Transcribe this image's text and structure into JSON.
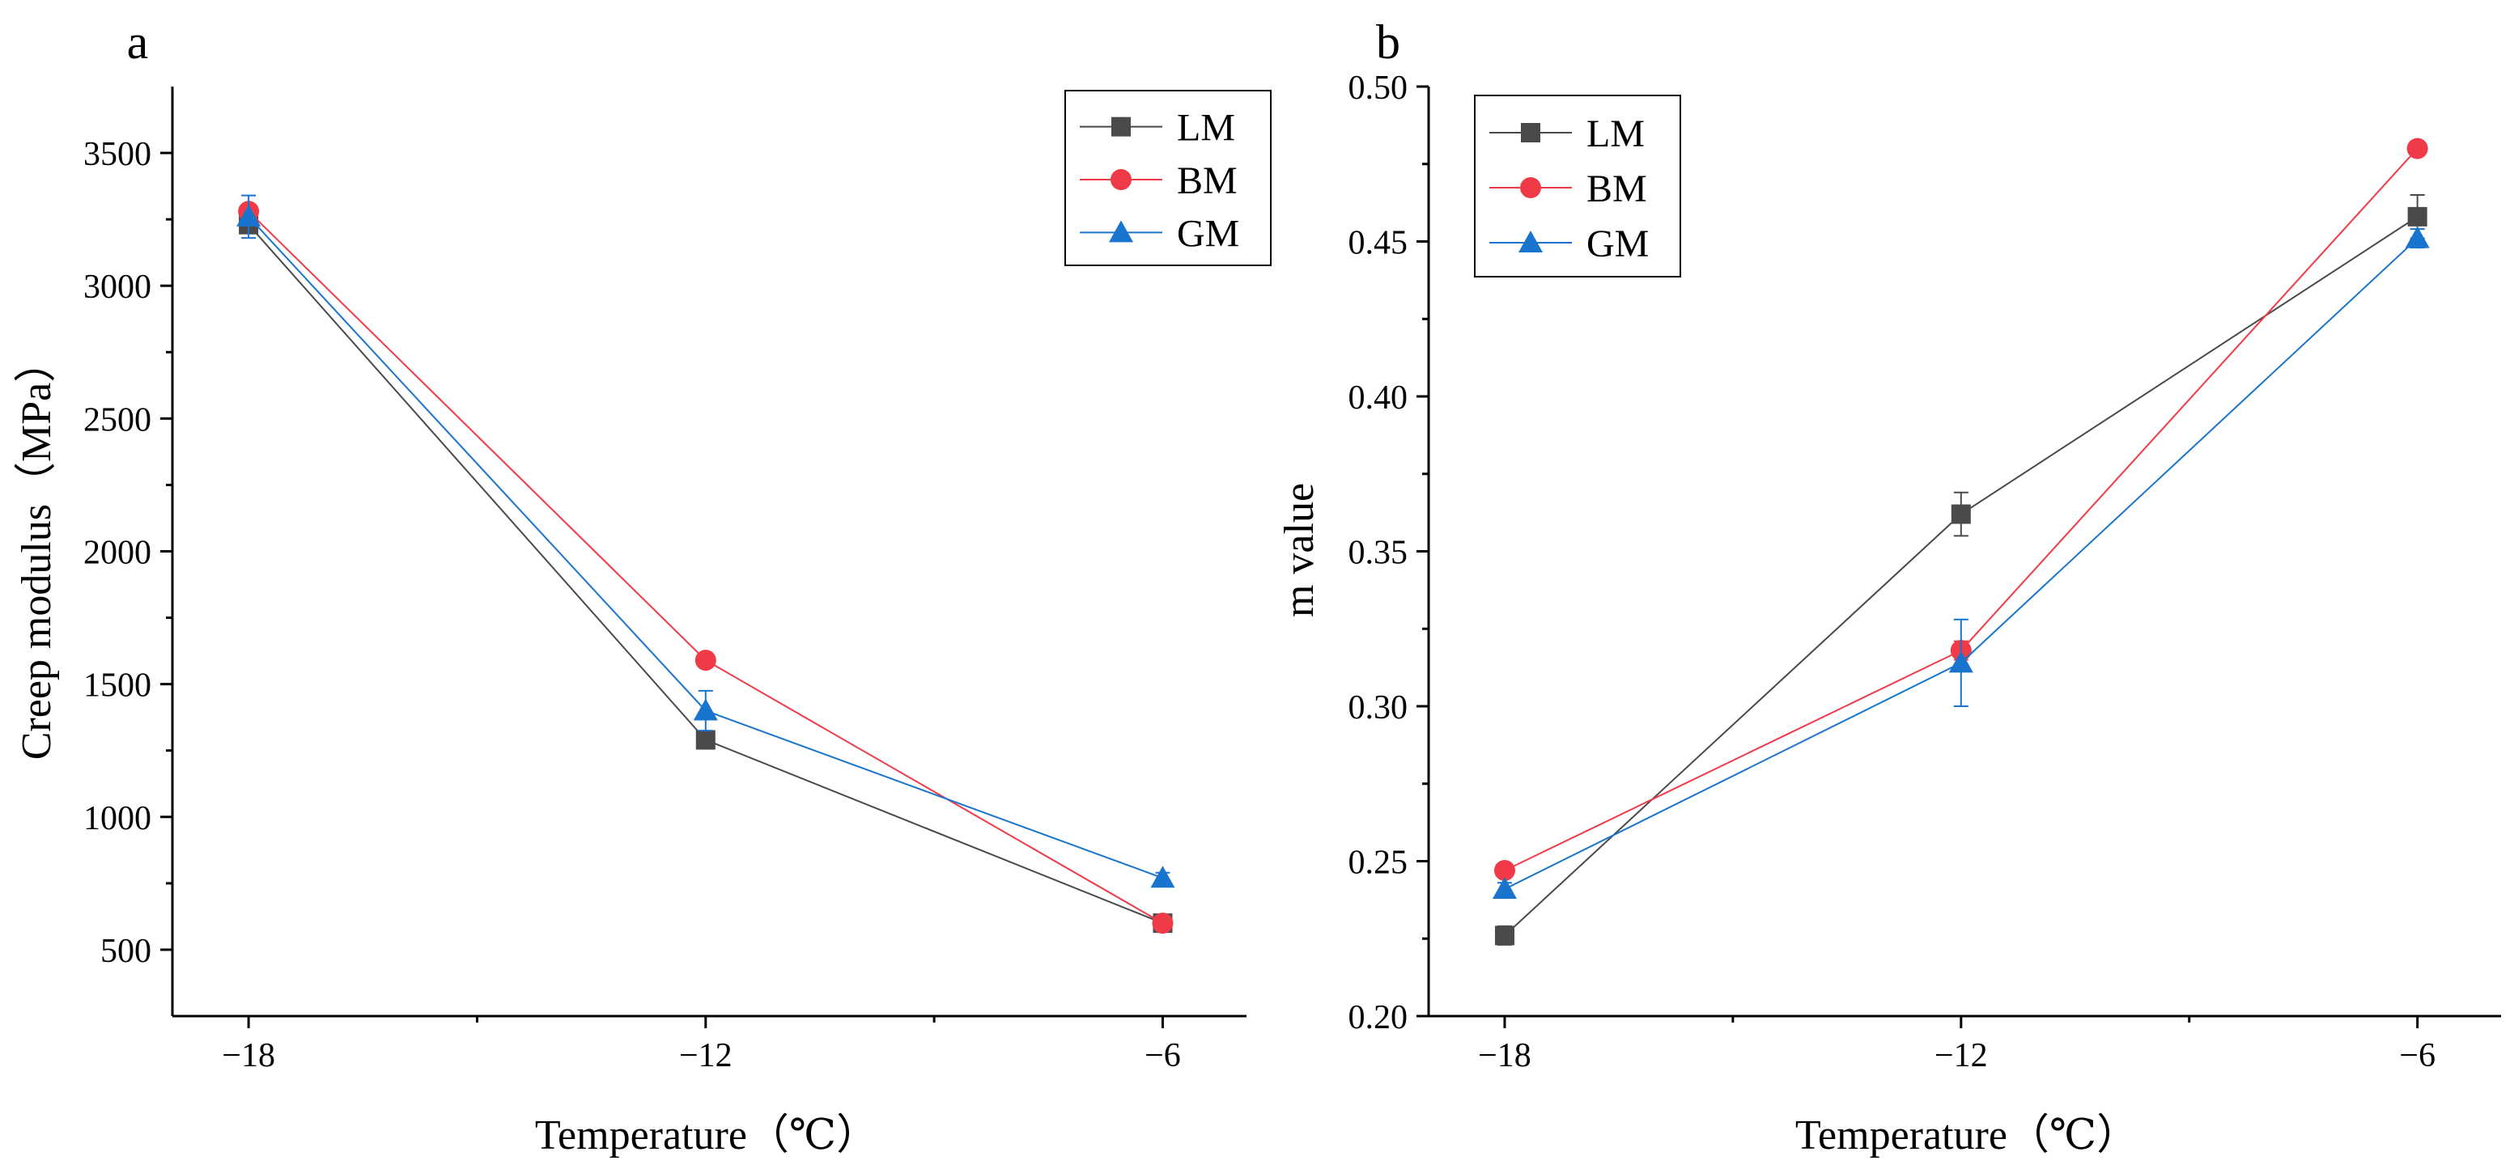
{
  "colors": {
    "LM": "#4a4a4a",
    "BM": "#f03a47",
    "GM": "#1874cd",
    "axis": "#000000"
  },
  "chart_data": [
    {
      "panel_label": "a",
      "type": "line",
      "xlabel": "Temperature（℃）",
      "ylabel": "Creep modulus（MPa）",
      "x": [
        -18,
        -12,
        -6
      ],
      "xticks": [
        "−18",
        "−12",
        "−6"
      ],
      "xlim": [
        -19,
        -4.9
      ],
      "ylim": [
        250,
        3750
      ],
      "yticks": [
        500,
        1000,
        1500,
        2000,
        2500,
        3000,
        3500
      ],
      "ytick_labels": [
        "500",
        "1000",
        "1500",
        "2000",
        "2500",
        "3000",
        "3500"
      ],
      "legend_position": "top-right",
      "series": [
        {
          "name": "LM",
          "marker": "square",
          "values": [
            3230,
            1290,
            600
          ],
          "errors": [
            30,
            25,
            20
          ]
        },
        {
          "name": "BM",
          "marker": "circle",
          "values": [
            3280,
            1590,
            600
          ],
          "errors": [
            20,
            20,
            15
          ]
        },
        {
          "name": "GM",
          "marker": "triangle",
          "values": [
            3260,
            1400,
            770
          ],
          "errors": [
            80,
            75,
            20
          ]
        }
      ]
    },
    {
      "panel_label": "b",
      "type": "line",
      "xlabel": "Temperature（℃）",
      "ylabel": "m value",
      "x": [
        -18,
        -12,
        -6
      ],
      "xticks": [
        "−18",
        "−12",
        "−6"
      ],
      "xlim": [
        -19,
        -4.9
      ],
      "ylim": [
        0.2,
        0.5
      ],
      "yticks": [
        0.2,
        0.25,
        0.3,
        0.35,
        0.4,
        0.45,
        0.5
      ],
      "ytick_labels": [
        "0.20",
        "0.25",
        "0.30",
        "0.35",
        "0.40",
        "0.45",
        "0.50"
      ],
      "legend_position": "top-left",
      "series": [
        {
          "name": "LM",
          "marker": "square",
          "values": [
            0.226,
            0.362,
            0.458
          ],
          "errors": [
            0.003,
            0.007,
            0.007
          ]
        },
        {
          "name": "BM",
          "marker": "circle",
          "values": [
            0.247,
            0.318,
            0.48
          ],
          "errors": [
            0.002,
            0.003,
            0.002
          ]
        },
        {
          "name": "GM",
          "marker": "triangle",
          "values": [
            0.241,
            0.314,
            0.451
          ],
          "errors": [
            0.002,
            0.014,
            0.003
          ]
        }
      ]
    }
  ]
}
